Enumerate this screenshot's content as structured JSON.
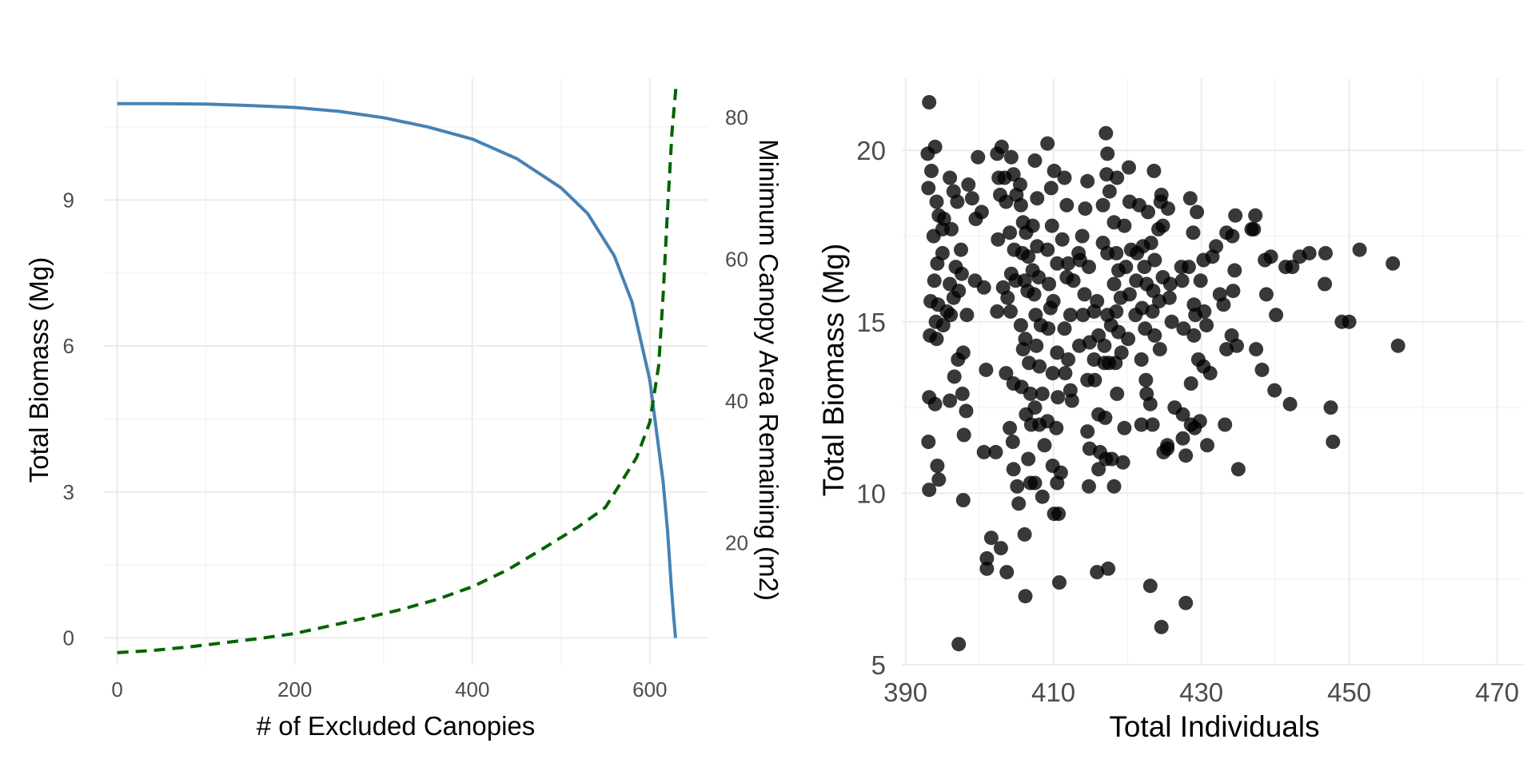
{
  "chart_data": [
    {
      "type": "line",
      "xlabel": "# of Excluded Canopies",
      "ylabel": "Total Biomass (Mg)",
      "y2label": "Minimum Canopy Area Remaining (m2)",
      "xlim": [
        -15,
        665
      ],
      "ylim": [
        -0.55,
        11.5
      ],
      "y2lim": [
        2.8,
        85.5
      ],
      "x_ticks": [
        0,
        200,
        400,
        600
      ],
      "y_ticks": [
        0,
        3,
        6,
        9
      ],
      "y2_ticks": [
        20,
        40,
        60,
        80
      ],
      "grid": true,
      "colors": {
        "biomass": "#4682b4",
        "canopy": "#006400"
      },
      "series": [
        {
          "axis": "left",
          "style": "solid",
          "x": [
            0,
            50,
            100,
            150,
            200,
            250,
            300,
            350,
            400,
            450,
            500,
            530,
            560,
            580,
            600,
            610,
            615,
            620,
            624,
            627,
            629
          ],
          "y": [
            10.98,
            10.98,
            10.97,
            10.94,
            10.9,
            10.82,
            10.69,
            10.5,
            10.25,
            9.85,
            9.25,
            8.72,
            7.85,
            6.9,
            5.3,
            3.9,
            3.2,
            2.2,
            1.1,
            0.4,
            0
          ]
        },
        {
          "axis": "right",
          "style": "dashed",
          "x": [
            0,
            40,
            80,
            120,
            160,
            200,
            240,
            280,
            320,
            360,
            400,
            440,
            480,
            520,
            550,
            570,
            585,
            600,
            610,
            615,
            620,
            625,
            630
          ],
          "y": [
            4.5,
            4.8,
            5.3,
            5.9,
            6.5,
            7.2,
            8.3,
            9.4,
            10.6,
            12,
            13.8,
            16.2,
            19.2,
            22.3,
            25,
            29,
            32,
            37,
            45,
            55,
            67,
            78,
            85
          ]
        }
      ]
    },
    {
      "type": "scatter",
      "xlabel": "Total Individuals",
      "ylabel": "Total Biomass (Mg)",
      "xlim": [
        389.5,
        473.5
      ],
      "ylim": [
        5,
        22.1
      ],
      "x_ticks": [
        390,
        410,
        430,
        450,
        470
      ],
      "y_ticks": [
        5,
        10,
        15,
        20
      ],
      "grid": true,
      "point_color": "#000000",
      "points": [
        [
          393.2,
          21.4
        ],
        [
          393,
          19.9
        ],
        [
          394,
          20.1
        ],
        [
          393.5,
          19.4
        ],
        [
          393.1,
          18.9
        ],
        [
          394.2,
          18.5
        ],
        [
          394.5,
          18.1
        ],
        [
          395,
          17.7
        ],
        [
          393.8,
          17.5
        ],
        [
          395.2,
          18.0
        ],
        [
          394.3,
          16.7
        ],
        [
          395,
          17.0
        ],
        [
          393.9,
          16.2
        ],
        [
          394.4,
          15.5
        ],
        [
          393.4,
          15.6
        ],
        [
          395.6,
          15.3
        ],
        [
          394.1,
          15.0
        ],
        [
          395.1,
          14.9
        ],
        [
          393.3,
          14.6
        ],
        [
          394.2,
          14.5
        ],
        [
          393.2,
          12.8
        ],
        [
          394.0,
          12.6
        ],
        [
          393.1,
          11.5
        ],
        [
          394.3,
          10.8
        ],
        [
          394.5,
          10.4
        ],
        [
          393.2,
          10.1
        ],
        [
          396,
          19.2
        ],
        [
          396.5,
          18.8
        ],
        [
          397,
          18.5
        ],
        [
          396.2,
          17.7
        ],
        [
          397.5,
          17.1
        ],
        [
          396.8,
          16.6
        ],
        [
          397.6,
          16.4
        ],
        [
          396,
          16.1
        ],
        [
          397.2,
          15.9
        ],
        [
          396.5,
          15.7
        ],
        [
          396.1,
          15.2
        ],
        [
          398.3,
          15.2
        ],
        [
          397.8,
          14.1
        ],
        [
          397.1,
          13.9
        ],
        [
          396.6,
          13.4
        ],
        [
          396.0,
          12.7
        ],
        [
          397.7,
          12.9
        ],
        [
          398.2,
          12.4
        ],
        [
          397.9,
          11.7
        ],
        [
          397.8,
          9.8
        ],
        [
          397.2,
          5.6
        ],
        [
          398.5,
          19.0
        ],
        [
          399.5,
          18.0
        ],
        [
          399.0,
          18.6
        ],
        [
          399.8,
          19.8
        ],
        [
          400.3,
          18.2
        ],
        [
          400.6,
          16.0
        ],
        [
          399.4,
          16.2
        ],
        [
          400.9,
          13.6
        ],
        [
          400.6,
          11.2
        ],
        [
          401.0,
          8.1
        ],
        [
          401.0,
          7.8
        ],
        [
          401.6,
          8.7
        ],
        [
          402.4,
          19.9
        ],
        [
          402.6,
          19.2
        ],
        [
          403.0,
          20.1
        ],
        [
          403.4,
          19.2
        ],
        [
          402.8,
          18.7
        ],
        [
          403.6,
          18.5
        ],
        [
          402.5,
          17.4
        ],
        [
          403.2,
          16.0
        ],
        [
          403.8,
          15.7
        ],
        [
          402.4,
          15.3
        ],
        [
          403.6,
          13.5
        ],
        [
          402.2,
          11.2
        ],
        [
          402.9,
          8.4
        ],
        [
          403.7,
          7.7
        ],
        [
          404.3,
          19.8
        ],
        [
          404.6,
          19.3
        ],
        [
          405.0,
          18.7
        ],
        [
          404.1,
          17.6
        ],
        [
          404.7,
          17.1
        ],
        [
          404.3,
          16.4
        ],
        [
          404.9,
          16.2
        ],
        [
          404.2,
          15.3
        ],
        [
          404.6,
          13.2
        ],
        [
          404.1,
          11.9
        ],
        [
          404.5,
          11.5
        ],
        [
          404.6,
          10.7
        ],
        [
          405.1,
          10.2
        ],
        [
          405.3,
          9.7
        ],
        [
          405.5,
          19.0
        ],
        [
          405.6,
          18.4
        ],
        [
          405.9,
          17.9
        ],
        [
          406.3,
          17.6
        ],
        [
          405.8,
          17.0
        ],
        [
          406.6,
          16.9
        ],
        [
          406.1,
          16.2
        ],
        [
          406.5,
          15.9
        ],
        [
          405.6,
          14.9
        ],
        [
          406.2,
          14.5
        ],
        [
          405.9,
          14.2
        ],
        [
          406.7,
          13.8
        ],
        [
          405.7,
          13.1
        ],
        [
          406.9,
          12.9
        ],
        [
          406.3,
          12.3
        ],
        [
          407.0,
          12.0
        ],
        [
          406.6,
          11.0
        ],
        [
          406.9,
          10.3
        ],
        [
          406.1,
          8.8
        ],
        [
          406.2,
          7.0
        ],
        [
          407.5,
          19.7
        ],
        [
          407.8,
          18.6
        ],
        [
          407.2,
          17.8
        ],
        [
          407.8,
          17.2
        ],
        [
          407.2,
          16.5
        ],
        [
          408.0,
          16.3
        ],
        [
          407.4,
          15.8
        ],
        [
          407.6,
          15.2
        ],
        [
          408.3,
          14.9
        ],
        [
          407.7,
          14.3
        ],
        [
          408.1,
          13.7
        ],
        [
          408.5,
          12.9
        ],
        [
          407.5,
          12.5
        ],
        [
          408.1,
          12.0
        ],
        [
          408.8,
          11.4
        ],
        [
          407.5,
          10.3
        ],
        [
          408.5,
          9.9
        ],
        [
          409.2,
          20.2
        ],
        [
          410.1,
          19.4
        ],
        [
          409.7,
          18.9
        ],
        [
          409.8,
          17.8
        ],
        [
          409.2,
          17.1
        ],
        [
          410.5,
          16.7
        ],
        [
          409.4,
          16.1
        ],
        [
          410.0,
          15.6
        ],
        [
          409.6,
          15.4
        ],
        [
          409.3,
          14.8
        ],
        [
          410.5,
          14.1
        ],
        [
          409.9,
          13.5
        ],
        [
          410.6,
          12.8
        ],
        [
          409.2,
          12.1
        ],
        [
          410.4,
          11.9
        ],
        [
          409.9,
          10.8
        ],
        [
          411.0,
          10.6
        ],
        [
          410.5,
          10.3
        ],
        [
          410.1,
          9.4
        ],
        [
          410.7,
          9.4
        ],
        [
          410.8,
          7.4
        ],
        [
          411.5,
          19.2
        ],
        [
          411.8,
          18.4
        ],
        [
          411.2,
          17.4
        ],
        [
          412.0,
          16.7
        ],
        [
          411.8,
          16.3
        ],
        [
          412.3,
          15.2
        ],
        [
          411.5,
          14.8
        ],
        [
          412.0,
          13.9
        ],
        [
          411.6,
          13.5
        ],
        [
          412.3,
          13.0
        ],
        [
          412.5,
          12.7
        ],
        [
          412.7,
          16.2
        ],
        [
          413.4,
          17.0
        ],
        [
          413.9,
          17.5
        ],
        [
          414.3,
          18.3
        ],
        [
          414.6,
          19.1
        ],
        [
          413.6,
          16.8
        ],
        [
          414.8,
          16.6
        ],
        [
          414.2,
          15.8
        ],
        [
          414.0,
          15.2
        ],
        [
          414.9,
          14.4
        ],
        [
          413.5,
          14.3
        ],
        [
          414.6,
          13.3
        ],
        [
          414.6,
          11.8
        ],
        [
          414.9,
          11.3
        ],
        [
          414.8,
          10.2
        ],
        [
          415.5,
          15.3
        ],
        [
          415.9,
          15.6
        ],
        [
          416.1,
          14.6
        ],
        [
          415.5,
          13.9
        ],
        [
          415.6,
          13.3
        ],
        [
          416.1,
          12.3
        ],
        [
          416.3,
          11.2
        ],
        [
          416.1,
          10.7
        ],
        [
          415.9,
          7.7
        ],
        [
          417.1,
          20.5
        ],
        [
          417.3,
          19.9
        ],
        [
          417.2,
          19.3
        ],
        [
          416.7,
          18.4
        ],
        [
          417.6,
          18.8
        ],
        [
          416.7,
          17.3
        ],
        [
          417.3,
          17.0
        ],
        [
          417.3,
          15.2
        ],
        [
          417.8,
          14.9
        ],
        [
          416.9,
          14.3
        ],
        [
          417.5,
          13.8
        ],
        [
          416.9,
          13.8
        ],
        [
          417.0,
          12.2
        ],
        [
          417.9,
          11.0
        ],
        [
          417.1,
          11.0
        ],
        [
          417.4,
          7.8
        ],
        [
          418.6,
          19.2
        ],
        [
          418.2,
          17.9
        ],
        [
          418.5,
          17.0
        ],
        [
          418.8,
          16.5
        ],
        [
          418.2,
          16.1
        ],
        [
          419.1,
          15.7
        ],
        [
          418.5,
          15.3
        ],
        [
          418.8,
          14.7
        ],
        [
          419.2,
          14.1
        ],
        [
          418.4,
          13.8
        ],
        [
          418.6,
          12.9
        ],
        [
          418.2,
          10.2
        ],
        [
          419.6,
          11.9
        ],
        [
          419.4,
          10.9
        ],
        [
          419.6,
          17.8
        ],
        [
          420.2,
          19.5
        ],
        [
          420.3,
          18.5
        ],
        [
          420.5,
          17.1
        ],
        [
          419.8,
          16.6
        ],
        [
          420.3,
          15.8
        ],
        [
          421.1,
          15.2
        ],
        [
          420.1,
          14.5
        ],
        [
          421.2,
          16.2
        ],
        [
          421.3,
          17.0
        ],
        [
          421.6,
          18.4
        ],
        [
          422.1,
          17.2
        ],
        [
          422.3,
          16.6
        ],
        [
          422.0,
          15.4
        ],
        [
          422.4,
          14.8
        ],
        [
          421.9,
          13.9
        ],
        [
          422.5,
          13.3
        ],
        [
          421.9,
          12.0
        ],
        [
          422.6,
          12.9
        ],
        [
          422.6,
          16.1
        ],
        [
          422.8,
          18.2
        ],
        [
          423.6,
          19.4
        ],
        [
          423.2,
          17.3
        ],
        [
          423.7,
          16.8
        ],
        [
          423.5,
          15.9
        ],
        [
          423.4,
          15.3
        ],
        [
          423.7,
          14.6
        ],
        [
          423.1,
          12.6
        ],
        [
          423.4,
          12.0
        ],
        [
          423.1,
          7.3
        ],
        [
          424.5,
          18.5
        ],
        [
          424.6,
          18.7
        ],
        [
          424.2,
          17.7
        ],
        [
          424.8,
          17.8
        ],
        [
          424.8,
          16.3
        ],
        [
          424.3,
          15.6
        ],
        [
          424.4,
          14.2
        ],
        [
          424.9,
          11.2
        ],
        [
          425.4,
          11.4
        ],
        [
          424.6,
          6.1
        ],
        [
          425.5,
          18.3
        ],
        [
          425.8,
          16.1
        ],
        [
          425.7,
          15.7
        ],
        [
          426.0,
          15.0
        ],
        [
          426.4,
          12.5
        ],
        [
          425.4,
          11.3
        ],
        [
          427.3,
          16.6
        ],
        [
          427.4,
          16.2
        ],
        [
          427.6,
          14.8
        ],
        [
          427.5,
          12.3
        ],
        [
          427.5,
          11.6
        ],
        [
          427.9,
          11.1
        ],
        [
          427.9,
          6.8
        ],
        [
          428.5,
          18.6
        ],
        [
          428.9,
          17.6
        ],
        [
          429.4,
          18.2
        ],
        [
          428.3,
          16.6
        ],
        [
          429.0,
          15.5
        ],
        [
          429.2,
          15.2
        ],
        [
          429.0,
          14.6
        ],
        [
          429.6,
          13.9
        ],
        [
          428.6,
          13.2
        ],
        [
          429.1,
          11.9
        ],
        [
          428.6,
          12.0
        ],
        [
          429.8,
          12.1
        ],
        [
          429.9,
          16.2
        ],
        [
          430.3,
          16.8
        ],
        [
          430.4,
          15.3
        ],
        [
          430.7,
          14.9
        ],
        [
          431.2,
          13.5
        ],
        [
          430.3,
          13.7
        ],
        [
          430.8,
          11.4
        ],
        [
          431.5,
          16.9
        ],
        [
          432.0,
          17.2
        ],
        [
          432.5,
          15.8
        ],
        [
          433.0,
          15.5
        ],
        [
          433.4,
          14.2
        ],
        [
          433.2,
          12.0
        ],
        [
          433.4,
          17.6
        ],
        [
          434.2,
          17.5
        ],
        [
          434.6,
          18.1
        ],
        [
          434.5,
          16.5
        ],
        [
          434.3,
          15.9
        ],
        [
          434.1,
          14.6
        ],
        [
          434.8,
          14.3
        ],
        [
          435.0,
          10.7
        ],
        [
          436.8,
          17.7
        ],
        [
          437.3,
          18.1
        ],
        [
          437.1,
          17.7
        ],
        [
          437.4,
          14.2
        ],
        [
          438.2,
          13.6
        ],
        [
          438.6,
          16.8
        ],
        [
          438.8,
          15.8
        ],
        [
          439.4,
          16.9
        ],
        [
          440.1,
          15.2
        ],
        [
          439.9,
          13.0
        ],
        [
          441.4,
          16.6
        ],
        [
          442.3,
          16.6
        ],
        [
          442.0,
          12.6
        ],
        [
          443.3,
          16.9
        ],
        [
          444.6,
          17.0
        ],
        [
          446.8,
          17.0
        ],
        [
          446.7,
          16.1
        ],
        [
          447.5,
          12.5
        ],
        [
          447.8,
          11.5
        ],
        [
          449.0,
          15.0
        ],
        [
          450.0,
          15.0
        ],
        [
          451.4,
          17.1
        ],
        [
          455.9,
          16.7
        ],
        [
          456.6,
          14.3
        ]
      ]
    }
  ]
}
